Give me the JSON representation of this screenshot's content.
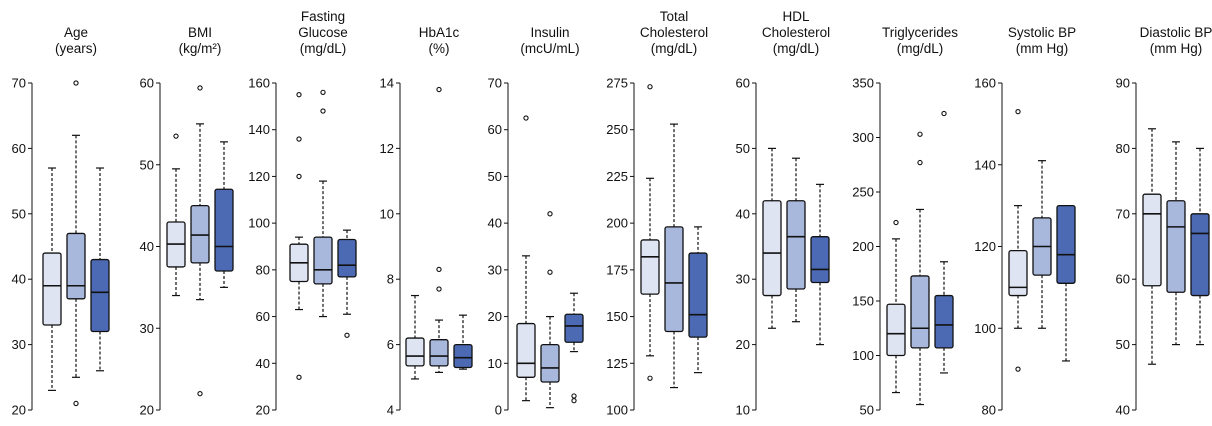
{
  "caption_fragment": "",
  "chart_data": [
    {
      "type": "box",
      "title": [
        "Age",
        "(years)"
      ],
      "ylim": [
        20,
        70
      ],
      "ticks": [
        20,
        30,
        40,
        50,
        60,
        70
      ],
      "boxes": [
        {
          "q1": 33,
          "median": 39,
          "q3": 44,
          "whisker_low": 23,
          "whisker_high": 57,
          "outliers": []
        },
        {
          "q1": 37,
          "median": 39,
          "q3": 47,
          "whisker_low": 25,
          "whisker_high": 62,
          "outliers": [
            70,
            21
          ]
        },
        {
          "q1": 32,
          "median": 38,
          "q3": 43,
          "whisker_low": 26,
          "whisker_high": 57,
          "outliers": []
        }
      ]
    },
    {
      "type": "box",
      "title": [
        "BMI",
        "(kg/m²)"
      ],
      "ylim": [
        20,
        60
      ],
      "ticks": [
        20,
        30,
        40,
        50,
        60
      ],
      "boxes": [
        {
          "q1": 37.5,
          "median": 40.3,
          "q3": 43,
          "whisker_low": 34,
          "whisker_high": 49.5,
          "outliers": [
            53.5
          ]
        },
        {
          "q1": 38,
          "median": 41.4,
          "q3": 45,
          "whisker_low": 33.5,
          "whisker_high": 55,
          "outliers": [
            59.4,
            22
          ]
        },
        {
          "q1": 37,
          "median": 40,
          "q3": 47,
          "whisker_low": 35,
          "whisker_high": 52.8,
          "outliers": []
        }
      ]
    },
    {
      "type": "box",
      "title": [
        "Fasting",
        "Glucose",
        "(mg/dL)"
      ],
      "ylim": [
        20,
        160
      ],
      "ticks": [
        20,
        40,
        60,
        80,
        100,
        120,
        140,
        160
      ],
      "boxes": [
        {
          "q1": 75,
          "median": 83,
          "q3": 91,
          "whisker_low": 63,
          "whisker_high": 94,
          "outliers": [
            155,
            136,
            120,
            34
          ]
        },
        {
          "q1": 74,
          "median": 80,
          "q3": 94,
          "whisker_low": 60,
          "whisker_high": 118,
          "outliers": [
            156,
            148
          ]
        },
        {
          "q1": 77,
          "median": 82,
          "q3": 93,
          "whisker_low": 61,
          "whisker_high": 97,
          "outliers": [
            52
          ]
        }
      ]
    },
    {
      "type": "box",
      "title": [
        "HbA1c",
        "(%)"
      ],
      "ylim": [
        4,
        14
      ],
      "ticks": [
        4,
        6,
        8,
        10,
        12,
        14
      ],
      "boxes": [
        {
          "q1": 5.35,
          "median": 5.65,
          "q3": 6.2,
          "whisker_low": 4.95,
          "whisker_high": 7.5,
          "outliers": []
        },
        {
          "q1": 5.35,
          "median": 5.65,
          "q3": 6.15,
          "whisker_low": 5.15,
          "whisker_high": 6.75,
          "outliers": [
            13.8,
            8.3,
            7.7
          ]
        },
        {
          "q1": 5.3,
          "median": 5.6,
          "q3": 6.0,
          "whisker_low": 5.25,
          "whisker_high": 6.9,
          "outliers": []
        }
      ]
    },
    {
      "type": "box",
      "title": [
        "Insulin",
        "(mcU/mL)"
      ],
      "ylim": [
        0,
        70
      ],
      "ticks": [
        0,
        10,
        20,
        30,
        40,
        50,
        60,
        70
      ],
      "boxes": [
        {
          "q1": 7,
          "median": 10,
          "q3": 18.5,
          "whisker_low": 2,
          "whisker_high": 33,
          "outliers": [
            62.5
          ]
        },
        {
          "q1": 6,
          "median": 9,
          "q3": 14,
          "whisker_low": 0.5,
          "whisker_high": 20,
          "outliers": [
            42,
            29.5
          ]
        },
        {
          "q1": 14.5,
          "median": 18,
          "q3": 20.5,
          "whisker_low": 12.5,
          "whisker_high": 25,
          "outliers": [
            3,
            2
          ]
        }
      ]
    },
    {
      "type": "box",
      "title": [
        "Total",
        "Cholesterol",
        "(mg/dL)"
      ],
      "ylim": [
        100,
        275
      ],
      "ticks": [
        100,
        125,
        150,
        175,
        200,
        225,
        250,
        275
      ],
      "boxes": [
        {
          "q1": 162,
          "median": 182,
          "q3": 191,
          "whisker_low": 129,
          "whisker_high": 224,
          "outliers": [
            273,
            117
          ]
        },
        {
          "q1": 142,
          "median": 168,
          "q3": 198,
          "whisker_low": 112,
          "whisker_high": 253,
          "outliers": []
        },
        {
          "q1": 139,
          "median": 151,
          "q3": 184,
          "whisker_low": 120,
          "whisker_high": 198,
          "outliers": []
        }
      ]
    },
    {
      "type": "box",
      "title": [
        "HDL",
        "Cholesterol",
        "(mg/dL)"
      ],
      "ylim": [
        10,
        60
      ],
      "ticks": [
        10,
        20,
        30,
        40,
        50,
        60
      ],
      "boxes": [
        {
          "q1": 27.5,
          "median": 34,
          "q3": 42,
          "whisker_low": 22.5,
          "whisker_high": 50,
          "outliers": []
        },
        {
          "q1": 28.5,
          "median": 36.5,
          "q3": 42,
          "whisker_low": 23.5,
          "whisker_high": 48.5,
          "outliers": []
        },
        {
          "q1": 29.5,
          "median": 31.5,
          "q3": 36.5,
          "whisker_low": 20,
          "whisker_high": 44.5,
          "outliers": []
        }
      ]
    },
    {
      "type": "box",
      "title": [
        "Triglycerides",
        "(mg/dL)"
      ],
      "ylim": [
        50,
        350
      ],
      "ticks": [
        50,
        100,
        150,
        200,
        250,
        300,
        350
      ],
      "boxes": [
        {
          "q1": 100,
          "median": 120,
          "q3": 147,
          "whisker_low": 66,
          "whisker_high": 207,
          "outliers": [
            222
          ]
        },
        {
          "q1": 107,
          "median": 125,
          "q3": 173,
          "whisker_low": 55,
          "whisker_high": 234,
          "outliers": [
            303,
            277
          ]
        },
        {
          "q1": 107,
          "median": 128,
          "q3": 155,
          "whisker_low": 84,
          "whisker_high": 186,
          "outliers": [
            322
          ]
        }
      ]
    },
    {
      "type": "box",
      "title": [
        "Systolic BP",
        "(mm Hg)"
      ],
      "ylim": [
        80,
        160
      ],
      "ticks": [
        80,
        100,
        120,
        140,
        160
      ],
      "boxes": [
        {
          "q1": 108,
          "median": 110,
          "q3": 119,
          "whisker_low": 100,
          "whisker_high": 130,
          "outliers": [
            153,
            90
          ]
        },
        {
          "q1": 113,
          "median": 120,
          "q3": 127,
          "whisker_low": 100,
          "whisker_high": 141,
          "outliers": []
        },
        {
          "q1": 111,
          "median": 118,
          "q3": 130,
          "whisker_low": 92,
          "whisker_high": 130,
          "outliers": []
        }
      ]
    },
    {
      "type": "box",
      "title": [
        "Diastolic BP",
        "(mm Hg)"
      ],
      "ylim": [
        40,
        90
      ],
      "ticks": [
        40,
        50,
        60,
        70,
        80,
        90
      ],
      "boxes": [
        {
          "q1": 59,
          "median": 70,
          "q3": 73,
          "whisker_low": 47,
          "whisker_high": 83,
          "outliers": []
        },
        {
          "q1": 58,
          "median": 68,
          "q3": 72,
          "whisker_low": 50,
          "whisker_high": 81,
          "outliers": []
        },
        {
          "q1": 57.5,
          "median": 67,
          "q3": 70,
          "whisker_low": 50,
          "whisker_high": 80,
          "outliers": []
        }
      ]
    }
  ],
  "colors": {
    "group_fills": [
      "#dfe4f3",
      "#a8b7dc",
      "#4b6ab3"
    ],
    "stroke": "#111111"
  }
}
